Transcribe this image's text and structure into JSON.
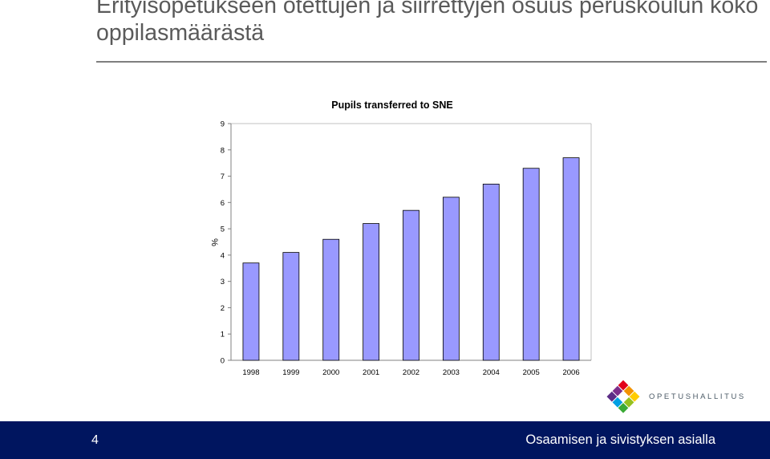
{
  "slide": {
    "title": "Erityisopetukseen otettujen ja siirrettyjen osuus peruskoulun koko oppilasmäärästä"
  },
  "chart_data": {
    "type": "bar",
    "title": "Pupils transferred to SNE",
    "xlabel": "",
    "ylabel": "%",
    "categories": [
      "1998",
      "1999",
      "2000",
      "2001",
      "2002",
      "2003",
      "2004",
      "2005",
      "2006"
    ],
    "values": [
      3.7,
      4.1,
      4.6,
      5.2,
      5.7,
      6.2,
      6.7,
      7.3,
      7.7
    ],
    "ylim": [
      0,
      9
    ],
    "yticks": [
      "0",
      "1",
      "2",
      "3",
      "4",
      "5",
      "6",
      "7",
      "8",
      "9"
    ],
    "grid": false,
    "bar_color": "#9999ff",
    "bar_outline": "#000000"
  },
  "logo": {
    "text": "OPETUSHALLITUS"
  },
  "footer": {
    "page_number": "4",
    "tagline": "Osaamisen ja sivistyksen asialla",
    "color": "#00155f"
  }
}
